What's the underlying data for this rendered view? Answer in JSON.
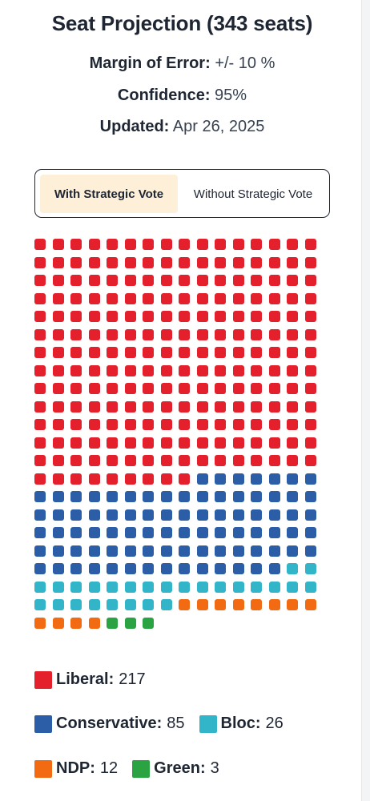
{
  "title": "Seat Projection (343 seats)",
  "info": {
    "margin_label": "Margin of Error:",
    "margin_value": "+/- 10 %",
    "confidence_label": "Confidence:",
    "confidence_value": "95%",
    "updated_label": "Updated:",
    "updated_value": "Apr 26, 2025"
  },
  "toggle": {
    "with_label": "With Strategic Vote",
    "without_label": "Without Strategic Vote",
    "selected": "with"
  },
  "chart_data": {
    "type": "waffle",
    "total": 343,
    "series": [
      {
        "name": "Liberal",
        "value": 217,
        "color": "#e3202b"
      },
      {
        "name": "Conservative",
        "value": 85,
        "color": "#2b5ea7"
      },
      {
        "name": "Bloc",
        "value": 26,
        "color": "#33b5c9"
      },
      {
        "name": "NDP",
        "value": 12,
        "color": "#f26b12"
      },
      {
        "name": "Green",
        "value": 3,
        "color": "#2aa343"
      }
    ]
  },
  "legend": [
    {
      "label": "Liberal:",
      "value": "217",
      "color": "#e3202b"
    },
    {
      "label": "Conservative:",
      "value": "85",
      "color": "#2b5ea7"
    },
    {
      "label": "Bloc:",
      "value": "26",
      "color": "#33b5c9"
    },
    {
      "label": "NDP:",
      "value": "12",
      "color": "#f26b12"
    },
    {
      "label": "Green:",
      "value": "3",
      "color": "#2aa343"
    }
  ]
}
